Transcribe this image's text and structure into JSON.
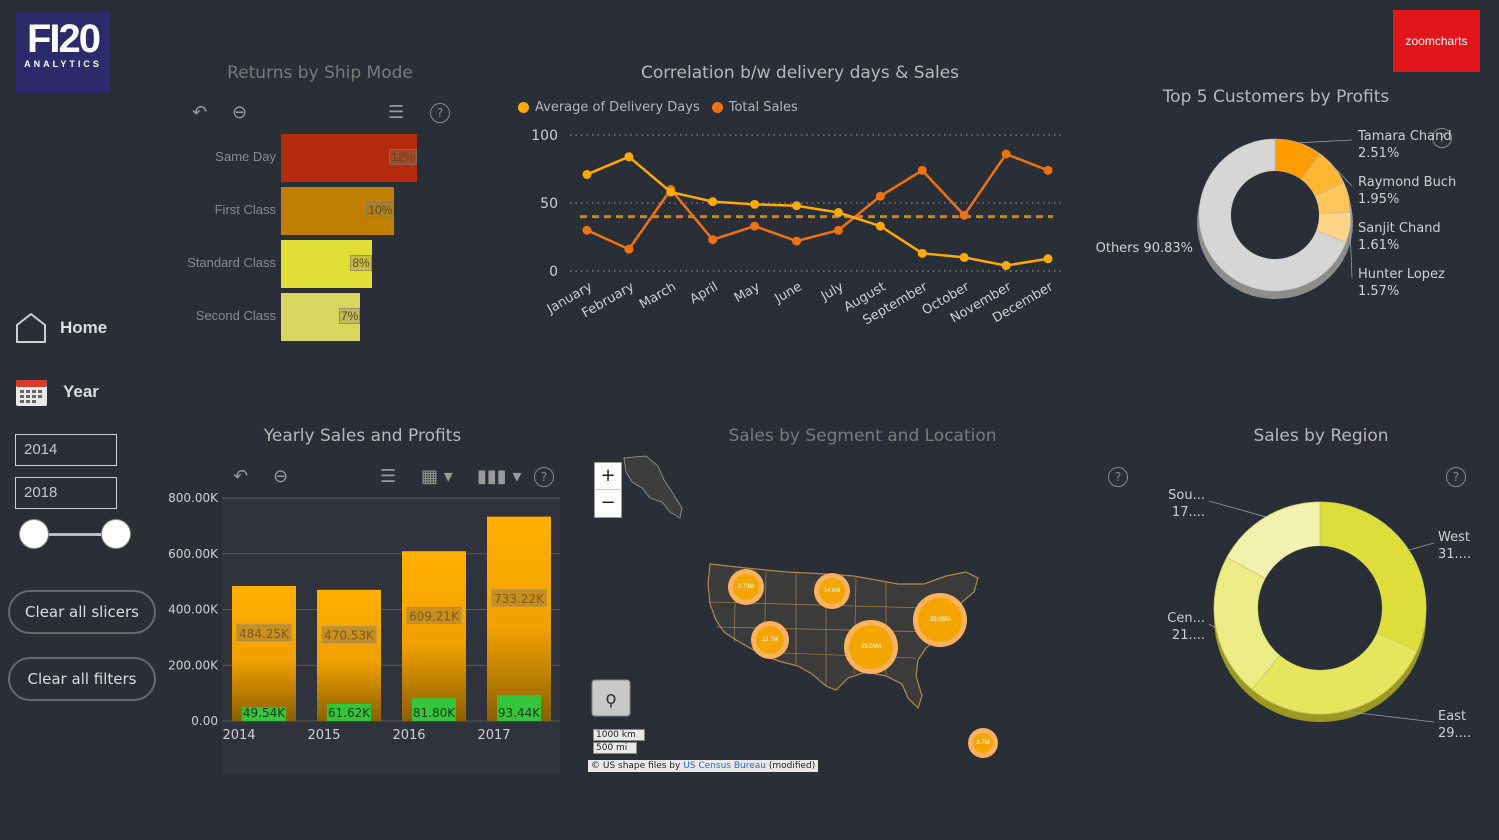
{
  "brand": {
    "logo_text": "FI20",
    "logo_sub": "ANALYTICS",
    "zoomcharts": "zoomcharts"
  },
  "nav": {
    "home": "Home",
    "year": "Year"
  },
  "year_slicer": {
    "from": "2014",
    "to": "2018",
    "range_fraction": [
      0.0,
      1.0
    ]
  },
  "buttons": {
    "clear_slicers": "Clear all slicers",
    "clear_filters": "Clear all filters"
  },
  "returns": {
    "title": "Returns by Ship Mode",
    "rows": [
      {
        "label": "Same Day",
        "value": 12,
        "text": "12%",
        "color": "#b32a0c"
      },
      {
        "label": "First Class",
        "value": 10,
        "text": "10%",
        "color": "#bf7f00"
      },
      {
        "label": "Standard Class",
        "value": 8,
        "text": "8%",
        "color": "#e0de35"
      },
      {
        "label": "Second Class",
        "value": 7,
        "text": "7%",
        "color": "#d8d65e"
      }
    ]
  },
  "correlation": {
    "title": "Correlation b/w delivery days & Sales",
    "legend": [
      "Average of Delivery Days",
      "Total Sales"
    ],
    "colors": [
      "#ffaa00",
      "#ef7212"
    ],
    "y_ticks": [
      "100",
      "50",
      "0"
    ],
    "ylim": [
      0,
      100
    ],
    "months": [
      "January",
      "February",
      "March",
      "April",
      "May",
      "June",
      "July",
      "August",
      "September",
      "October",
      "November",
      "December"
    ],
    "avg_delivery_days": [
      71,
      84,
      58,
      51,
      49,
      48,
      43,
      33,
      13,
      10,
      4,
      9
    ],
    "total_sales": [
      30,
      16,
      60,
      23,
      33,
      22,
      30,
      55,
      74,
      41,
      86,
      74
    ],
    "reference_line": 40
  },
  "top_customers": {
    "title": "Top 5 Customers by Profits",
    "slices": [
      {
        "name": "Tamara Chand",
        "value": "2.51%",
        "share": 2.51,
        "color": "#ff9c00"
      },
      {
        "name": "Raymond Buch",
        "value": "1.95%",
        "share": 1.95,
        "color": "#ffb733"
      },
      {
        "name": "Sanjit Chand",
        "value": "1.61%",
        "share": 1.61,
        "color": "#ffc65c"
      },
      {
        "name": "Hunter Lopez",
        "value": "1.57%",
        "share": 1.57,
        "color": "#ffd487"
      },
      {
        "name": "Others",
        "value": "90.83%",
        "share": 90.83,
        "color": "#d6d6d6"
      }
    ]
  },
  "yearly": {
    "title": "Yearly Sales and Profits",
    "y_ticks": [
      "800.00K",
      "600.00K",
      "400.00K",
      "200.00K",
      "0.00"
    ],
    "ylim": [
      0,
      800000
    ],
    "years": [
      "2014",
      "2015",
      "2016",
      "2017"
    ],
    "sales": [
      484250,
      470530,
      609210,
      733220
    ],
    "sales_labels": [
      "484.25K",
      "470.53K",
      "609.21K",
      "733.22K"
    ],
    "profits": [
      49540,
      61620,
      81800,
      93440
    ],
    "profit_labels": [
      "49.54K",
      "61.62K",
      "81.80K",
      "93.44K"
    ]
  },
  "map": {
    "title": "Sales by Segment and Location",
    "zoom_in": "+",
    "zoom_out": "−",
    "scale_km": "1000 km",
    "scale_mi": "500 mi",
    "attribution_prefix": "© US shape files by ",
    "attribution_link": "US Census Bureau",
    "attribution_suffix": " (modified)",
    "bubbles": [
      "3.73M",
      "14.6M",
      "13.7M",
      "39.05M",
      "39.05M",
      "3.7M"
    ]
  },
  "region": {
    "title": "Sales by Region",
    "slices": [
      {
        "name": "West",
        "value": "31....",
        "share": 31.6,
        "color": "#dede3a"
      },
      {
        "name": "East",
        "value": "29....",
        "share": 29.5,
        "color": "#e6e65e"
      },
      {
        "name": "Cen...",
        "value": "21....",
        "share": 21.8,
        "color": "#ecec86"
      },
      {
        "name": "Sou...",
        "value": "17....",
        "share": 17.1,
        "color": "#f2f2b0"
      }
    ]
  }
}
